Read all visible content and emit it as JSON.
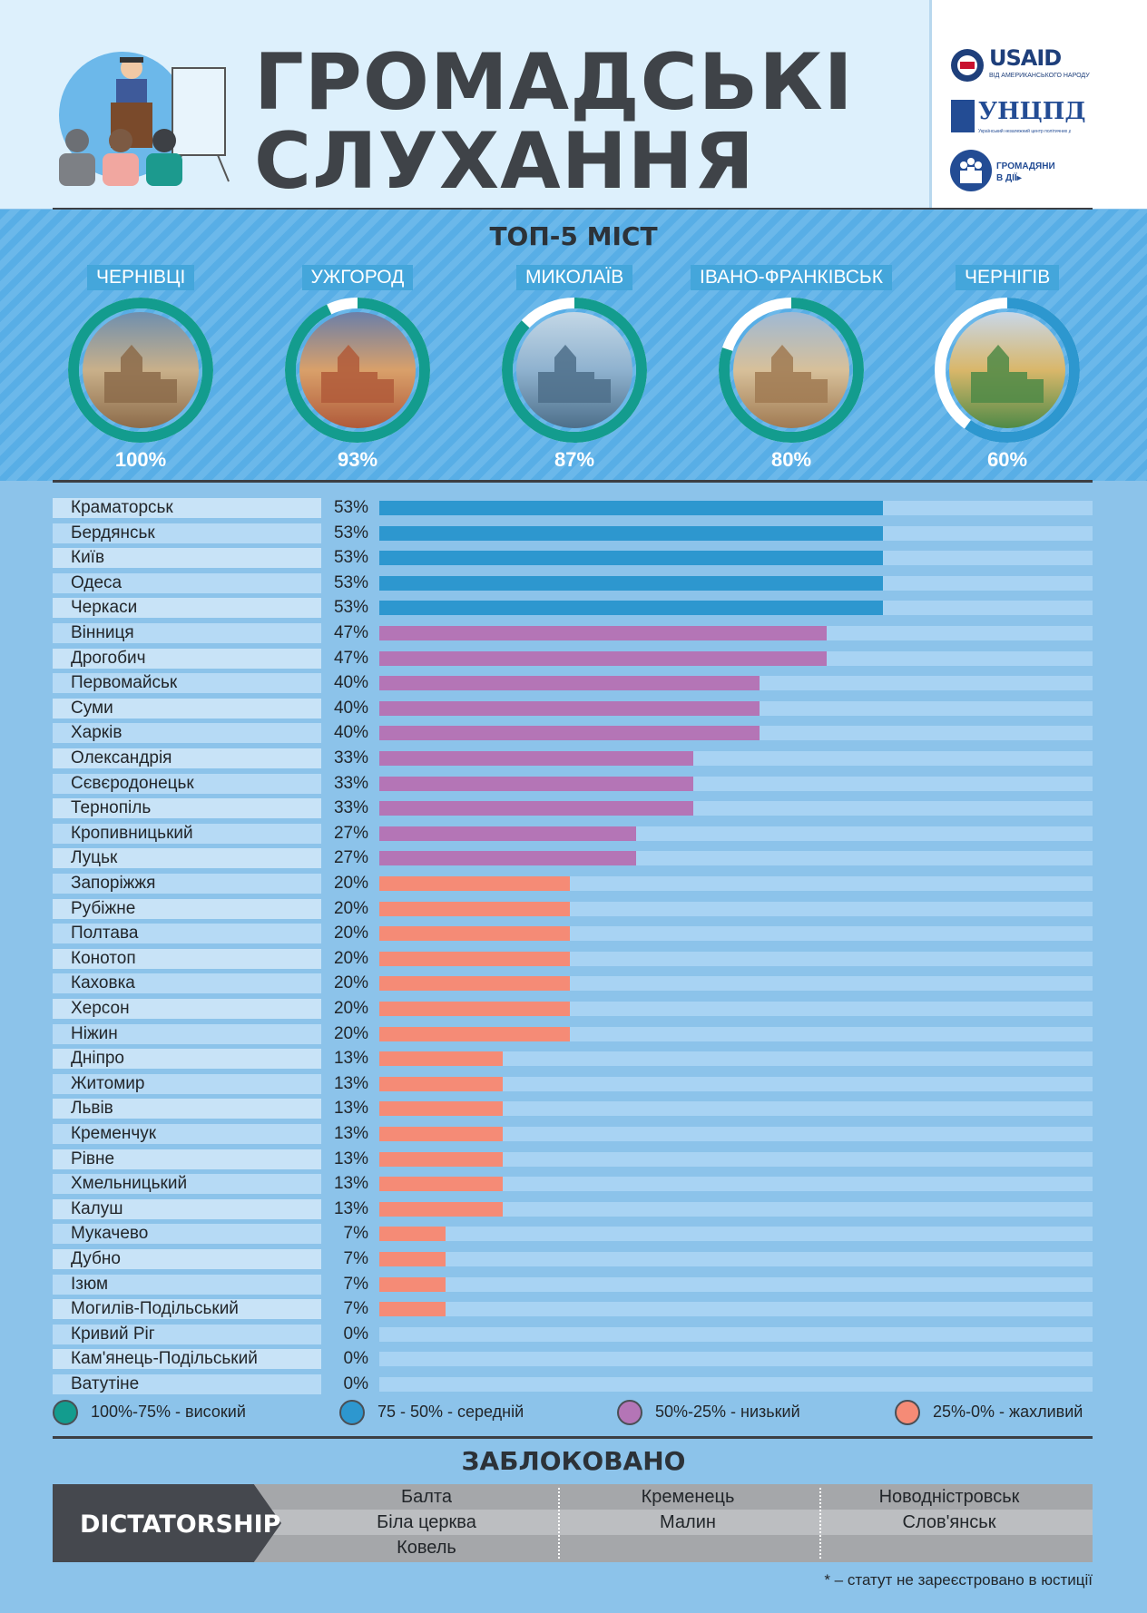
{
  "header": {
    "title_line1": "ГРОМАДСЬКІ",
    "title_line2": "СЛУХАННЯ",
    "logos": [
      {
        "name": "usaid",
        "text": "USAID",
        "subtext": "ВІД АМЕРИКАНСЬКОГО НАРОДУ"
      },
      {
        "name": "uncpd",
        "text": "УНЦПД",
        "subtext": "Український незалежний центр політичних досліджень"
      },
      {
        "name": "citizens",
        "text": "ГРОМАДЯНИ",
        "subtext": "В ДІЇ▸"
      }
    ]
  },
  "top5": {
    "title": "ТОП-5 МІСТ",
    "cities": [
      {
        "name": "ЧЕРНІВЦІ",
        "pct_label": "100%",
        "value": 100,
        "ring_color": "#139c8e"
      },
      {
        "name": "УЖГОРОД",
        "pct_label": "93%",
        "value": 93,
        "ring_color": "#139c8e"
      },
      {
        "name": "МИКОЛАЇВ",
        "pct_label": "87%",
        "value": 87,
        "ring_color": "#139c8e"
      },
      {
        "name": "ІВАНО-ФРАНКІВСЬК",
        "pct_label": "80%",
        "value": 80,
        "ring_color": "#139c8e"
      },
      {
        "name": "ЧЕРНІГІВ",
        "pct_label": "60%",
        "value": 60,
        "ring_color": "#2d97cf"
      }
    ]
  },
  "chart_data": {
    "type": "bar",
    "orientation": "horizontal",
    "title": "ТОП-5 МІСТ",
    "xlim": [
      0,
      100
    ],
    "categories": [
      "Краматорськ",
      "Бердянськ",
      "Київ",
      "Одеса",
      "Черкаси",
      "Вінниця",
      "Дрогобич",
      "Первомайськ",
      "Суми",
      "Харків",
      "Олександрія",
      "Сєвєродонецьк",
      "Тернопіль",
      "Кропивницький",
      "Луцьк",
      "Запоріжжя",
      "Рубіжне",
      "Полтава",
      "Конотоп",
      "Каховка",
      "Херсон",
      "Ніжин",
      "Дніпро",
      "Житомир",
      "Львів",
      "Кременчук",
      "Рівне",
      "Хмельницький",
      "Калуш",
      "Мукачево",
      "Дубно",
      "Ізюм",
      "Могилів-Подільський",
      "Кривий Ріг",
      "Кам'янець-Подільський",
      "Ватутіне"
    ],
    "values": [
      53,
      53,
      53,
      53,
      53,
      47,
      47,
      40,
      40,
      40,
      33,
      33,
      33,
      27,
      27,
      20,
      20,
      20,
      20,
      20,
      20,
      20,
      13,
      13,
      13,
      13,
      13,
      13,
      13,
      7,
      7,
      7,
      7,
      0,
      0,
      0
    ],
    "value_labels": [
      "53%",
      "53%",
      "53%",
      "53%",
      "53%",
      "47%",
      "47%",
      "40%",
      "40%",
      "40%",
      "33%",
      "33%",
      "33%",
      "27%",
      "27%",
      "20%",
      "20%",
      "20%",
      "20%",
      "20%",
      "20%",
      "20%",
      "13%",
      "13%",
      "13%",
      "13%",
      "13%",
      "13%",
      "13%",
      "7%",
      "7%",
      "7%",
      "7%",
      "0%",
      "0%",
      "0%"
    ],
    "legend": [
      {
        "label": "100%-75% - високий",
        "color": "#139c8e"
      },
      {
        "label": "75 - 50% - середній",
        "color": "#2d97cf"
      },
      {
        "label": "50%-25% - низький",
        "color": "#b475b6"
      },
      {
        "label": "25%-0% - жахливий",
        "color": "#f58b76"
      }
    ]
  },
  "blocked": {
    "title": "ЗАБЛОКОВАНО",
    "label": "DICTATORSHIP",
    "columns": [
      [
        "Балта",
        "Біла церква",
        "Ковель"
      ],
      [
        "Кременець",
        "Малин"
      ],
      [
        "Новодністровськ",
        "Слов'янськ"
      ]
    ]
  },
  "footnote": "* – статут не зареєстровано в юстиції"
}
